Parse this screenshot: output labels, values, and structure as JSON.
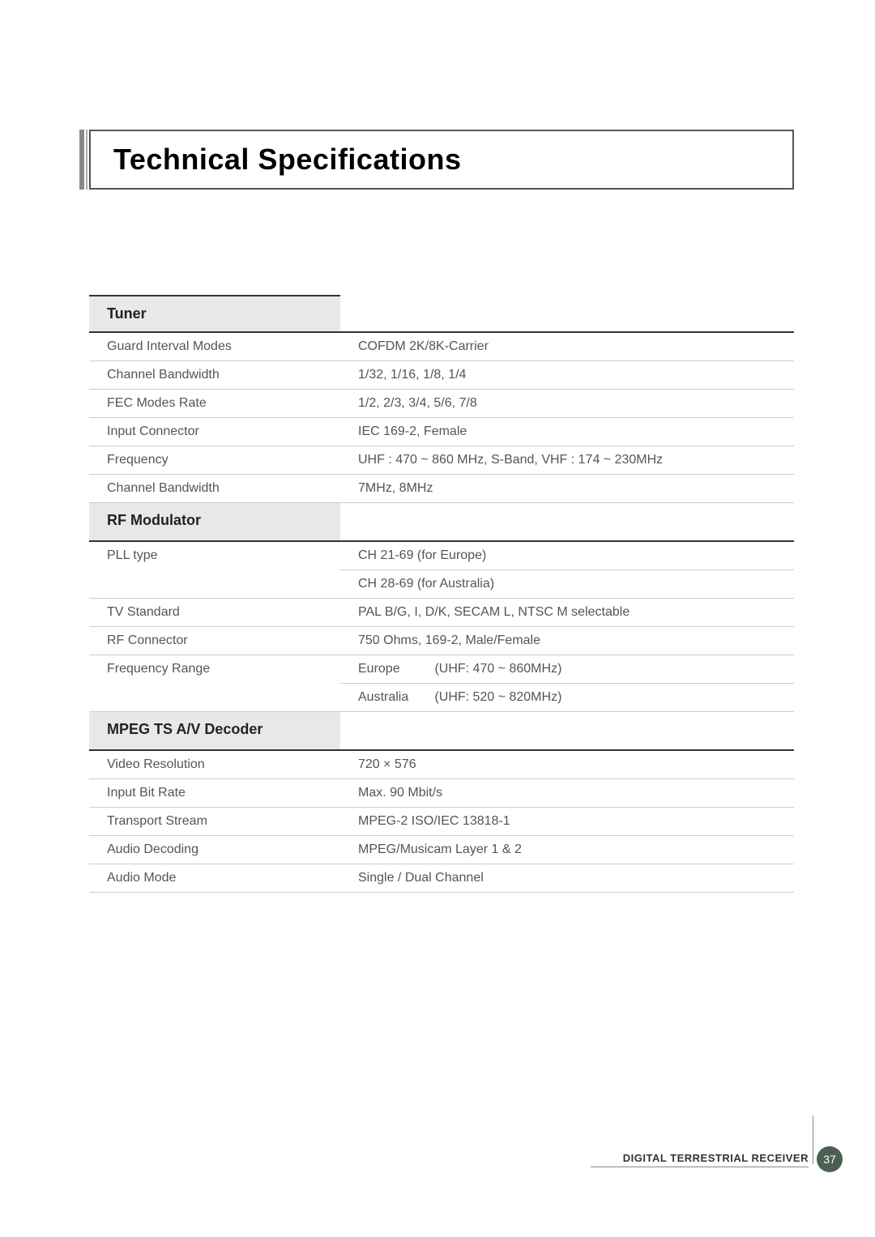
{
  "page_title": "Technical Specifications",
  "footer_text": "DIGITAL TERRESTRIAL RECEIVER",
  "page_number": "37",
  "sections": {
    "tuner": {
      "title": "Tuner",
      "rows": {
        "guard_interval": {
          "label": "Guard Interval Modes",
          "value": "COFDM 2K/8K-Carrier"
        },
        "channel_bandwidth_1": {
          "label": "Channel Bandwidth",
          "value": "1/32, 1/16, 1/8, 1/4"
        },
        "fec_modes": {
          "label": "FEC Modes Rate",
          "value": "1/2, 2/3, 3/4, 5/6, 7/8"
        },
        "input_connector": {
          "label": "Input Connector",
          "value": "IEC 169-2, Female"
        },
        "frequency": {
          "label": "Frequency",
          "value": "UHF : 470 ~ 860 MHz, S-Band, VHF : 174 ~ 230MHz"
        },
        "channel_bandwidth_2": {
          "label": "Channel Bandwidth",
          "value": "7MHz, 8MHz"
        }
      }
    },
    "rf_modulator": {
      "title": "RF Modulator",
      "rows": {
        "pll_type": {
          "label": "PLL type",
          "value1": "CH 21-69 (for Europe)",
          "value2": "CH 28-69 (for Australia)"
        },
        "tv_standard": {
          "label": "TV Standard",
          "value": "PAL B/G, I, D/K, SECAM L, NTSC M selectable"
        },
        "rf_connector": {
          "label": "RF Connector",
          "value": "750 Ohms, 169-2, Male/Female"
        },
        "frequency_range": {
          "label": "Frequency Range",
          "region1": "Europe",
          "value1": "(UHF: 470 ~ 860MHz)",
          "region2": "Australia",
          "value2": "(UHF: 520 ~ 820MHz)"
        }
      }
    },
    "mpeg_decoder": {
      "title": "MPEG TS A/V Decoder",
      "rows": {
        "video_resolution": {
          "label": "Video Resolution",
          "value": "720 × 576"
        },
        "input_bit_rate": {
          "label": "Input Bit Rate",
          "value": "Max. 90 Mbit/s"
        },
        "transport_stream": {
          "label": "Transport Stream",
          "value": "MPEG-2 ISO/IEC 13818-1"
        },
        "audio_decoding": {
          "label": "Audio Decoding",
          "value": "MPEG/Musicam Layer 1 & 2"
        },
        "audio_mode": {
          "label": "Audio Mode",
          "value": "Single / Dual Channel"
        }
      }
    }
  },
  "style": {
    "background_color": "#ffffff",
    "text_color": "#555555",
    "header_bg": "#e8e8e8",
    "border_color": "#cccccc",
    "dark_border": "#333333",
    "title_fontsize": 36,
    "body_fontsize": 16,
    "section_fontsize": 18,
    "page_badge_bg": "#4a6050"
  }
}
